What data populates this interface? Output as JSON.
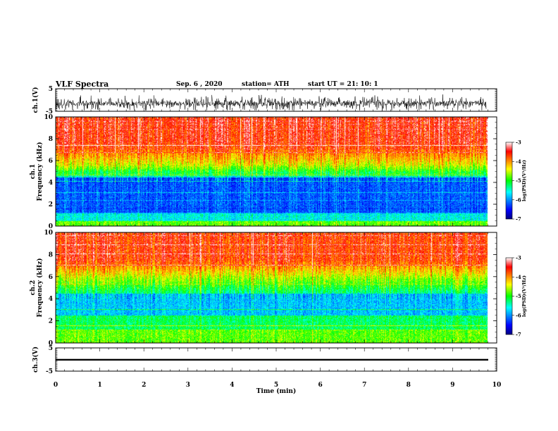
{
  "header": {
    "title": "VLF Spectra",
    "date": "Sep. 6 , 2020",
    "station": "station= ATH",
    "start": "start UT = 21: 10: 1"
  },
  "chart_data": [
    {
      "type": "line",
      "name": "ch1-waveform",
      "ylabel": "ch.1(V)",
      "ylim": [
        -5,
        5
      ],
      "yticks": [
        "5",
        "-5"
      ],
      "xlim": [
        0,
        10
      ]
    },
    {
      "type": "heatmap",
      "name": "ch1-spectrogram",
      "ylabel": "ch.1\nFrequency (kHz)",
      "ylabel_lines": [
        "ch.1",
        "Frequency (kHz)"
      ],
      "ylim": [
        0,
        10
      ],
      "yticks": [
        "0",
        "2",
        "4",
        "6",
        "8",
        "10"
      ],
      "xlim": [
        0,
        9.8
      ],
      "colorbar": {
        "label": "log(PSD)(V²/Hz)",
        "range": [
          -7,
          -3
        ],
        "ticks": [
          "-3",
          "-4",
          "-5",
          "-6",
          "-7"
        ]
      }
    },
    {
      "type": "heatmap",
      "name": "ch2-spectrogram",
      "ylabel": "ch.2\nFrequency (kHz)",
      "ylabel_lines": [
        "ch.2",
        "Frequency (kHz)"
      ],
      "ylim": [
        0,
        10
      ],
      "yticks": [
        "0",
        "2",
        "4",
        "6",
        "8",
        "10"
      ],
      "xlim": [
        0,
        9.8
      ],
      "colorbar": {
        "label": "log(PSD)(V²/Hz)",
        "range": [
          -7,
          -3
        ],
        "ticks": [
          "-3",
          "-4",
          "-5",
          "-6",
          "-7"
        ]
      }
    },
    {
      "type": "line",
      "name": "ch3-waveform",
      "ylabel": "ch.3(V)",
      "ylim": [
        -5,
        5
      ],
      "yticks": [
        "5",
        "-5"
      ],
      "xlim": [
        0,
        10
      ],
      "xlabel": "Time (min)",
      "xticks": [
        "0",
        "1",
        "2",
        "3",
        "4",
        "5",
        "6",
        "7",
        "8",
        "9",
        "10"
      ]
    }
  ]
}
